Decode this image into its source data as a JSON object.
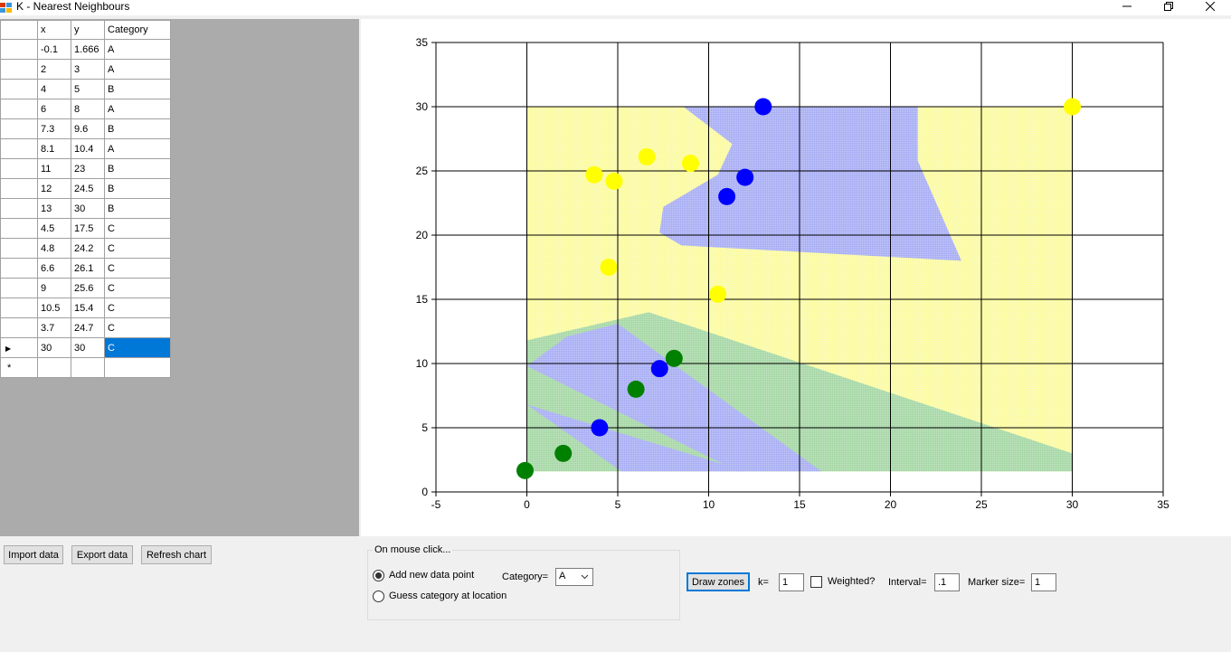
{
  "window": {
    "title": "K - Nearest Neighbours",
    "minimize_icon": "minimize-icon",
    "restore_icon": "restore-icon",
    "close_icon": "close-icon"
  },
  "grid": {
    "columns": [
      "x",
      "y",
      "Category"
    ],
    "rows": [
      {
        "x": "-0.1",
        "y": "1.666",
        "category": "A"
      },
      {
        "x": "2",
        "y": "3",
        "category": "A"
      },
      {
        "x": "4",
        "y": "5",
        "category": "B"
      },
      {
        "x": "6",
        "y": "8",
        "category": "A"
      },
      {
        "x": "7.3",
        "y": "9.6",
        "category": "B"
      },
      {
        "x": "8.1",
        "y": "10.4",
        "category": "A"
      },
      {
        "x": "11",
        "y": "23",
        "category": "B"
      },
      {
        "x": "12",
        "y": "24.5",
        "category": "B"
      },
      {
        "x": "13",
        "y": "30",
        "category": "B"
      },
      {
        "x": "4.5",
        "y": "17.5",
        "category": "C"
      },
      {
        "x": "4.8",
        "y": "24.2",
        "category": "C"
      },
      {
        "x": "6.6",
        "y": "26.1",
        "category": "C"
      },
      {
        "x": "9",
        "y": "25.6",
        "category": "C"
      },
      {
        "x": "10.5",
        "y": "15.4",
        "category": "C"
      },
      {
        "x": "3.7",
        "y": "24.7",
        "category": "C"
      },
      {
        "x": "30",
        "y": "30",
        "category": "C"
      }
    ],
    "selected_row": 15,
    "new_row_marker": "*"
  },
  "chart_data": {
    "type": "scatter",
    "title": "",
    "xlabel": "",
    "ylabel": "",
    "xlim": [
      -5,
      35
    ],
    "ylim": [
      0,
      35
    ],
    "xticks": [
      -5,
      0,
      5,
      10,
      15,
      20,
      25,
      30,
      35
    ],
    "yticks": [
      0,
      5,
      10,
      15,
      20,
      25,
      30,
      35
    ],
    "grid": true,
    "category_colors": {
      "A": "#008000",
      "B": "#0000ff",
      "C": "#ffff00"
    },
    "zone_colors": {
      "A": "#a8d8a8",
      "B": "#aab0f4",
      "C": "#fbfba4"
    },
    "points": [
      {
        "x": -0.1,
        "y": 1.666,
        "category": "A"
      },
      {
        "x": 2,
        "y": 3,
        "category": "A"
      },
      {
        "x": 4,
        "y": 5,
        "category": "B"
      },
      {
        "x": 6,
        "y": 8,
        "category": "A"
      },
      {
        "x": 7.3,
        "y": 9.6,
        "category": "B"
      },
      {
        "x": 8.1,
        "y": 10.4,
        "category": "A"
      },
      {
        "x": 11,
        "y": 23,
        "category": "B"
      },
      {
        "x": 12,
        "y": 24.5,
        "category": "B"
      },
      {
        "x": 13,
        "y": 30,
        "category": "B"
      },
      {
        "x": 4.5,
        "y": 17.5,
        "category": "C"
      },
      {
        "x": 4.8,
        "y": 24.2,
        "category": "C"
      },
      {
        "x": 6.6,
        "y": 26.1,
        "category": "C"
      },
      {
        "x": 9,
        "y": 25.6,
        "category": "C"
      },
      {
        "x": 10.5,
        "y": 15.4,
        "category": "C"
      },
      {
        "x": 3.7,
        "y": 24.7,
        "category": "C"
      },
      {
        "x": 30,
        "y": 30,
        "category": "C"
      }
    ],
    "zones": [
      {
        "category": "C",
        "polygon": [
          [
            0,
            1.6
          ],
          [
            30,
            1.6
          ],
          [
            30,
            30
          ],
          [
            0,
            30
          ]
        ]
      },
      {
        "category": "B",
        "polygon": [
          [
            8.6,
            30
          ],
          [
            21.5,
            30
          ],
          [
            21.5,
            25.8
          ],
          [
            23.9,
            18
          ],
          [
            8.5,
            19.2
          ],
          [
            7.3,
            20.2
          ],
          [
            7.5,
            22.2
          ],
          [
            10.5,
            24.7
          ],
          [
            11.3,
            27.1
          ]
        ]
      },
      {
        "category": "A",
        "polygon": [
          [
            0,
            11.8
          ],
          [
            6.7,
            14
          ],
          [
            30,
            3
          ],
          [
            30,
            1.6
          ],
          [
            0,
            1.6
          ]
        ]
      },
      {
        "category": "B",
        "polygon": [
          [
            0,
            9.8
          ],
          [
            2.2,
            12.1
          ],
          [
            5,
            13.1
          ],
          [
            16.2,
            1.6
          ],
          [
            11.6,
            1.6
          ]
        ]
      },
      {
        "category": "B",
        "polygon": [
          [
            0,
            6.8
          ],
          [
            5.2,
            1.6
          ],
          [
            12.1,
            1.6
          ]
        ]
      }
    ]
  },
  "toolbar": {
    "import_label": "Import data",
    "export_label": "Export data",
    "refresh_label": "Refresh chart",
    "draw_zones_label": "Draw zones",
    "k_label": "k=",
    "k_value": "1",
    "weighted_label": "Weighted?",
    "weighted_checked": false,
    "interval_label": "Interval=",
    "interval_value": ".1",
    "marker_size_label": "Marker size=",
    "marker_size_value": "1"
  },
  "mouse_click": {
    "group_title": "On mouse click...",
    "option_add_label": "Add new data point",
    "option_guess_label": "Guess category at location",
    "selected_option": "add",
    "category_label": "Category=",
    "category_value": "A",
    "category_options": [
      "A",
      "B",
      "C"
    ],
    "chevron_icon": "chevron-down-icon"
  }
}
